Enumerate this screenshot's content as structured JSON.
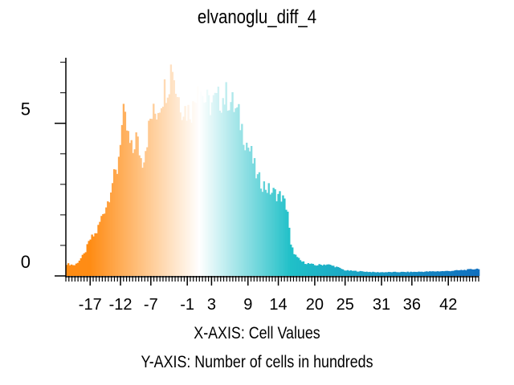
{
  "chart_data": {
    "type": "bar",
    "title": "elvanoglu_diff_4",
    "xlabel": "X-AXIS: Cell Values",
    "ylabel": "Y-AXIS: Number of cells in hundreds",
    "x_ticks": [
      -17,
      -12,
      -7,
      -1,
      3,
      9,
      14,
      20,
      25,
      31,
      36,
      42
    ],
    "y_ticks": [
      0,
      5
    ],
    "xlim": [
      -21,
      47
    ],
    "ylim": [
      0,
      7.2
    ],
    "grid": false,
    "color_low": "#ff8c14",
    "color_mid": "#ffffff",
    "color_high": "#20c0c8",
    "color_tail": "#1070c0",
    "profile": [
      {
        "x": -21.0,
        "y": 0.4
      },
      {
        "x": -19.5,
        "y": 0.35
      },
      {
        "x": -18.0,
        "y": 0.7
      },
      {
        "x": -17.0,
        "y": 1.2
      },
      {
        "x": -16.0,
        "y": 1.4
      },
      {
        "x": -15.0,
        "y": 2.0
      },
      {
        "x": -14.0,
        "y": 2.5
      },
      {
        "x": -13.5,
        "y": 3.0
      },
      {
        "x": -12.5,
        "y": 3.5
      },
      {
        "x": -12.0,
        "y": 4.6
      },
      {
        "x": -11.5,
        "y": 5.2
      },
      {
        "x": -11.0,
        "y": 4.8
      },
      {
        "x": -10.5,
        "y": 4.3
      },
      {
        "x": -10.0,
        "y": 4.0
      },
      {
        "x": -9.5,
        "y": 4.6
      },
      {
        "x": -9.0,
        "y": 4.2
      },
      {
        "x": -8.5,
        "y": 3.7
      },
      {
        "x": -8.0,
        "y": 4.1
      },
      {
        "x": -7.0,
        "y": 5.2
      },
      {
        "x": -6.0,
        "y": 5.4
      },
      {
        "x": -5.0,
        "y": 6.0
      },
      {
        "x": -4.0,
        "y": 6.4
      },
      {
        "x": -3.5,
        "y": 7.1
      },
      {
        "x": -3.0,
        "y": 6.2
      },
      {
        "x": -2.0,
        "y": 5.6
      },
      {
        "x": -1.0,
        "y": 5.4
      },
      {
        "x": 0.0,
        "y": 5.5
      },
      {
        "x": 0.8,
        "y": 6.6
      },
      {
        "x": 1.5,
        "y": 5.9
      },
      {
        "x": 2.5,
        "y": 5.6
      },
      {
        "x": 3.5,
        "y": 5.7
      },
      {
        "x": 4.5,
        "y": 5.8
      },
      {
        "x": 5.5,
        "y": 5.9
      },
      {
        "x": 6.5,
        "y": 5.6
      },
      {
        "x": 7.5,
        "y": 5.2
      },
      {
        "x": 8.5,
        "y": 4.5
      },
      {
        "x": 9.5,
        "y": 4.0
      },
      {
        "x": 10.5,
        "y": 3.2
      },
      {
        "x": 11.5,
        "y": 3.0
      },
      {
        "x": 12.5,
        "y": 2.8
      },
      {
        "x": 13.5,
        "y": 2.7
      },
      {
        "x": 14.5,
        "y": 2.6
      },
      {
        "x": 15.5,
        "y": 2.2
      },
      {
        "x": 16.0,
        "y": 1.0
      },
      {
        "x": 17.0,
        "y": 0.6
      },
      {
        "x": 18.0,
        "y": 0.45
      },
      {
        "x": 20.0,
        "y": 0.35
      },
      {
        "x": 22.0,
        "y": 0.38
      },
      {
        "x": 23.5,
        "y": 0.3
      },
      {
        "x": 25.0,
        "y": 0.18
      },
      {
        "x": 30.0,
        "y": 0.12
      },
      {
        "x": 36.0,
        "y": 0.13
      },
      {
        "x": 42.0,
        "y": 0.16
      },
      {
        "x": 45.0,
        "y": 0.2
      },
      {
        "x": 47.0,
        "y": 0.24
      }
    ]
  }
}
